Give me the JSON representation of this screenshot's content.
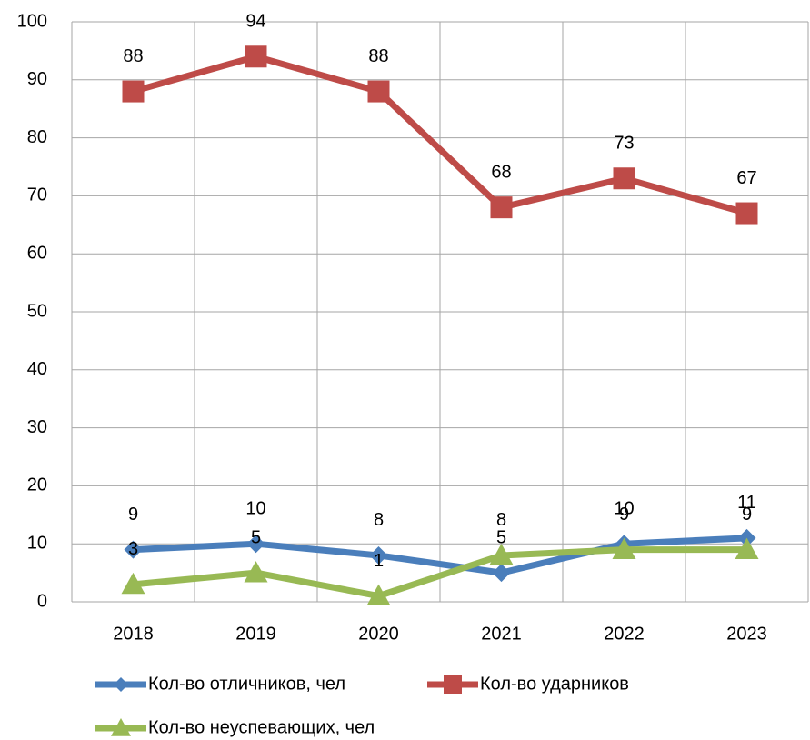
{
  "chart_data": {
    "type": "line",
    "categories": [
      "2018",
      "2019",
      "2020",
      "2021",
      "2022",
      "2023"
    ],
    "series": [
      {
        "name": "Кол-во отличников, чел",
        "color": "#4a7ebb",
        "marker": "diamond",
        "values": [
          9,
          10,
          8,
          5,
          10,
          11
        ]
      },
      {
        "name": "Кол-во ударников",
        "color": "#be4b48",
        "marker": "square",
        "values": [
          88,
          94,
          88,
          68,
          73,
          67
        ]
      },
      {
        "name": "Кол-во неуспевающих, чел",
        "color": "#98b954",
        "marker": "triangle",
        "values": [
          3,
          5,
          1,
          8,
          9,
          9
        ]
      }
    ],
    "ylim": [
      0,
      100
    ],
    "yticks": [
      0,
      10,
      20,
      30,
      40,
      50,
      60,
      70,
      80,
      90,
      100
    ],
    "grid": true,
    "data_labels": true
  }
}
